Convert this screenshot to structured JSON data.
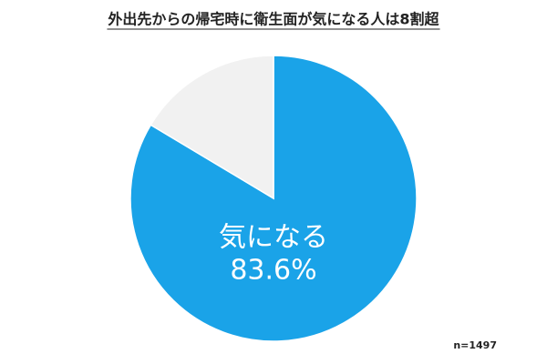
{
  "chart_data": {
    "type": "pie",
    "title": "外出先からの帰宅時に衛生面が気になる人は8割超",
    "categories": [
      "気になる",
      null
    ],
    "values": [
      83.6,
      16.4
    ],
    "value_labels": [
      "83.6%",
      null
    ],
    "colors": [
      "#1aa3e8",
      "#f1f1f1"
    ],
    "note": "n=1497"
  }
}
